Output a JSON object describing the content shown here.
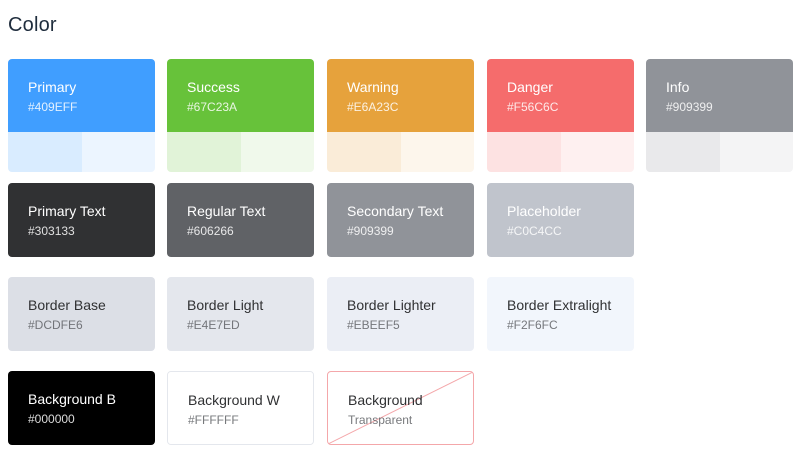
{
  "title": "Color",
  "main": [
    {
      "name": "Primary",
      "hex": "#409EFF",
      "color": "#409EFF",
      "shades": [
        "#D9ECFF",
        "#ECF5FF"
      ]
    },
    {
      "name": "Success",
      "hex": "#67C23A",
      "color": "#67C23A",
      "shades": [
        "#E1F3D8",
        "#F0F9EB"
      ]
    },
    {
      "name": "Warning",
      "hex": "#E6A23C",
      "color": "#E6A23C",
      "shades": [
        "#FAECD8",
        "#FDF6EC"
      ]
    },
    {
      "name": "Danger",
      "hex": "#F56C6C",
      "color": "#F56C6C",
      "shades": [
        "#FDE2E2",
        "#FEF0F0"
      ]
    },
    {
      "name": "Info",
      "hex": "#909399",
      "color": "#909399",
      "shades": [
        "#E9E9EB",
        "#F4F4F5"
      ]
    }
  ],
  "text": [
    {
      "name": "Primary Text",
      "hex": "#303133",
      "color": "#303133"
    },
    {
      "name": "Regular Text",
      "hex": "#606266",
      "color": "#606266"
    },
    {
      "name": "Secondary Text",
      "hex": "#909399",
      "color": "#909399"
    },
    {
      "name": "Placeholder",
      "hex": "#C0C4CC",
      "color": "#C0C4CC"
    }
  ],
  "border": [
    {
      "name": "Border Base",
      "hex": "#DCDFE6",
      "color": "#DCDFE6"
    },
    {
      "name": "Border Light",
      "hex": "#E4E7ED",
      "color": "#E4E7ED"
    },
    {
      "name": "Border Lighter",
      "hex": "#EBEEF5",
      "color": "#EBEEF5"
    },
    {
      "name": "Border Extralight",
      "hex": "#F2F6FC",
      "color": "#F2F6FC"
    }
  ],
  "background": [
    {
      "name": "Background B",
      "hex": "#000000",
      "color": "#000000"
    },
    {
      "name": "Background W",
      "hex": "#FFFFFF",
      "color": "#FFFFFF"
    },
    {
      "name": "Background",
      "hex": "Transparent",
      "color": "transparent"
    }
  ]
}
